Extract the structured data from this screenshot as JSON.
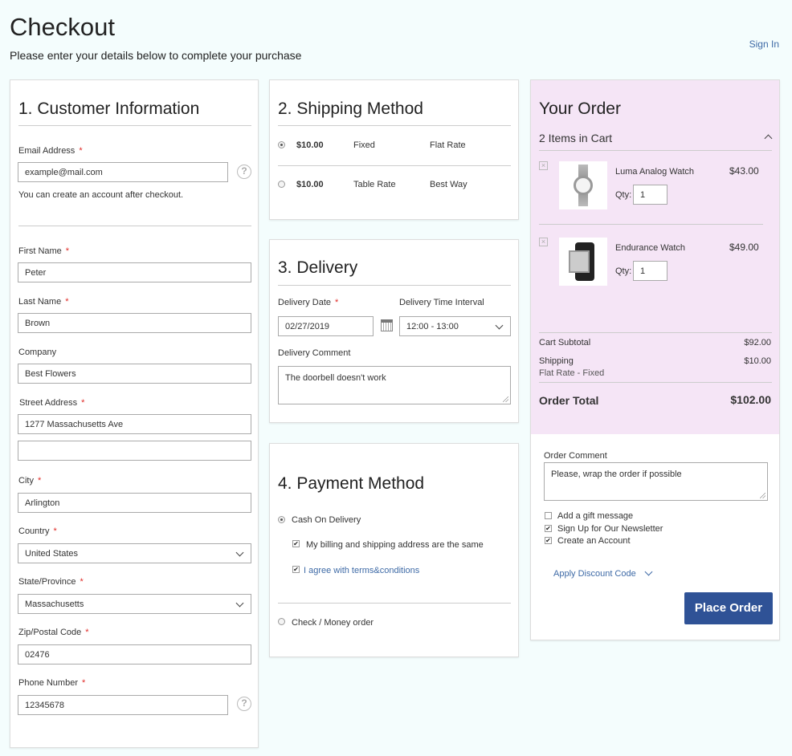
{
  "header": {
    "title": "Checkout",
    "subtitle": "Please enter your details below to complete your purchase",
    "sign_in": "Sign In"
  },
  "customer": {
    "title": "1. Customer Information",
    "email_label": "Email Address",
    "email_value": "example@mail.com",
    "email_note": "You can create an account after checkout.",
    "fields": [
      {
        "label": "First Name",
        "value": "Peter",
        "required": true
      },
      {
        "label": "Last Name",
        "value": "Brown",
        "required": true
      },
      {
        "label": "Company",
        "value": "Best Flowers",
        "required": false
      },
      {
        "label": "Street Address",
        "value": "1277 Massachusetts Ave",
        "value2": "",
        "required": true
      },
      {
        "label": "City",
        "value": "Arlington",
        "required": true
      },
      {
        "label": "Country",
        "value": "United States",
        "required": true
      },
      {
        "label": "State/Province",
        "value": "Massachusetts",
        "required": true
      },
      {
        "label": "Zip/Postal Code",
        "value": "02476",
        "required": true
      },
      {
        "label": "Phone Number",
        "value": "12345678",
        "required": true
      }
    ],
    "required_mark": "*",
    "help": "?"
  },
  "shipping": {
    "title": "2. Shipping Method",
    "methods": [
      {
        "price": "$10.00",
        "method": "Fixed",
        "carrier": "Flat Rate",
        "selected": true
      },
      {
        "price": "$10.00",
        "method": "Table Rate",
        "carrier": "Best Way",
        "selected": false
      }
    ]
  },
  "delivery": {
    "title": "3. Delivery",
    "date_label": "Delivery Date",
    "date_value": "02/27/2019",
    "interval_label": "Delivery Time Interval",
    "interval_value": "12:00 - 13:00",
    "comment_label": "Delivery Comment",
    "comment_value": "The doorbell doesn't work"
  },
  "payment": {
    "title": "4. Payment Method",
    "cod": "Cash On Delivery",
    "same_address": "My billing and shipping address are the same",
    "terms": "I agree with terms&conditions",
    "check": "Check / Money order"
  },
  "order": {
    "title": "Your Order",
    "items_count": "2 Items in Cart",
    "qty_label": "Qty:",
    "items": [
      {
        "name": "Luma Analog Watch",
        "price": "$43.00",
        "qty": "1"
      },
      {
        "name": "Endurance Watch",
        "price": "$49.00",
        "qty": "1"
      }
    ],
    "subtotal_label": "Cart Subtotal",
    "subtotal": "$92.00",
    "shipping_label": "Shipping",
    "shipping_method": "Flat Rate - Fixed",
    "shipping": "$10.00",
    "total_label": "Order Total",
    "total": "$102.00",
    "comment_label": "Order Comment",
    "comment_value": "Please, wrap the order if possible",
    "gift": "Add a gift message",
    "gift_checked": false,
    "newsletter": "Sign Up for Our Newsletter",
    "newsletter_checked": true,
    "create_account": "Create an Account",
    "create_account_checked": true,
    "discount": "Apply Discount Code",
    "place_order": "Place Order",
    "bg": "#f5e5f6",
    "button_color": "#2f5296"
  }
}
